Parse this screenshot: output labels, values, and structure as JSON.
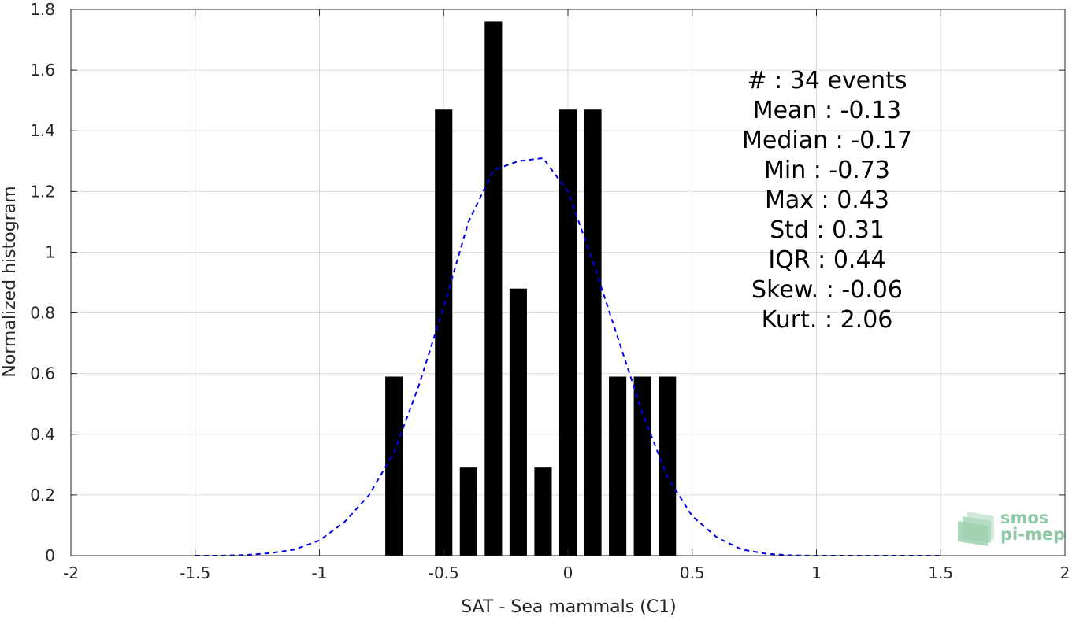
{
  "chart_data": {
    "type": "bar",
    "title": "",
    "xlabel": "SAT - Sea mammals (C1)",
    "ylabel": "Normalized histogram",
    "xlim": [
      -2,
      2
    ],
    "ylim": [
      0,
      1.8
    ],
    "grid": true,
    "xticks": [
      "-2",
      "-1.5",
      "-1",
      "-0.5",
      "0",
      "0.5",
      "1",
      "1.5",
      "2"
    ],
    "xtick_values": [
      -2,
      -1.5,
      -1,
      -0.5,
      0,
      0.5,
      1,
      1.5,
      2
    ],
    "yticks": [
      "0",
      "0.2",
      "0.4",
      "0.6",
      "0.8",
      "1",
      "1.2",
      "1.4",
      "1.6",
      "1.8"
    ],
    "ytick_values": [
      0,
      0.2,
      0.4,
      0.6,
      0.8,
      1,
      1.2,
      1.4,
      1.6,
      1.8
    ],
    "bar_color": "#000000",
    "bin_width": 0.1,
    "bins": [
      {
        "x": -0.7,
        "y": 0.59
      },
      {
        "x": -0.5,
        "y": 1.47
      },
      {
        "x": -0.4,
        "y": 0.29
      },
      {
        "x": -0.3,
        "y": 1.76
      },
      {
        "x": -0.2,
        "y": 0.88
      },
      {
        "x": -0.1,
        "y": 0.29
      },
      {
        "x": 0.0,
        "y": 1.47
      },
      {
        "x": 0.1,
        "y": 1.47
      },
      {
        "x": 0.2,
        "y": 0.59
      },
      {
        "x": 0.3,
        "y": 0.59
      },
      {
        "x": 0.4,
        "y": 0.59
      }
    ],
    "fit_curve": {
      "style": "dashed",
      "color": "#0000ee",
      "x": [
        -1.5,
        -1.4,
        -1.3,
        -1.2,
        -1.1,
        -1.0,
        -0.9,
        -0.8,
        -0.7,
        -0.6,
        -0.5,
        -0.4,
        -0.3,
        -0.2,
        -0.1,
        0.0,
        0.1,
        0.2,
        0.3,
        0.4,
        0.5,
        0.6,
        0.7,
        0.8,
        0.9,
        1.0,
        1.1,
        1.2,
        1.3,
        1.4,
        1.5
      ],
      "y": [
        0.0,
        0.0,
        0.002,
        0.008,
        0.02,
        0.05,
        0.11,
        0.2,
        0.34,
        0.56,
        0.82,
        1.1,
        1.27,
        1.3,
        1.31,
        1.2,
        0.97,
        0.72,
        0.47,
        0.26,
        0.13,
        0.06,
        0.02,
        0.006,
        0.001,
        0.0,
        0.0,
        0.0,
        0.0,
        0.0,
        0.0
      ]
    },
    "stats": [
      "#  : 34 events",
      "Mean : -0.13",
      "Median : -0.17",
      "Min : -0.73",
      "Max : 0.43",
      "Std : 0.31",
      "IQR : 0.44",
      "Skew. : -0.06",
      "Kurt. : 2.06"
    ]
  },
  "logo": {
    "line1": "smos",
    "line2": "pi-mep",
    "color": "#8fcaa4"
  }
}
